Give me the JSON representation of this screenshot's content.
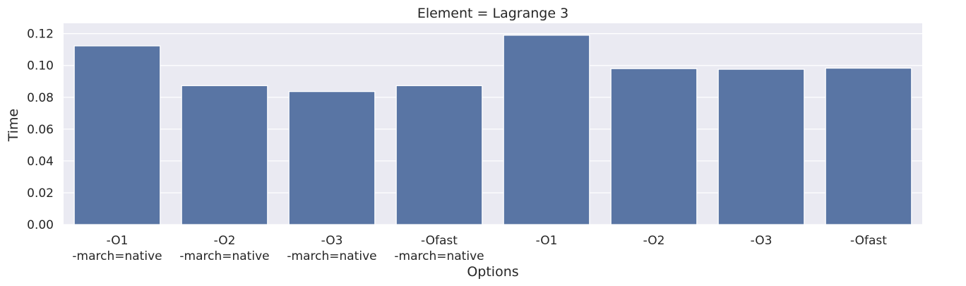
{
  "chart_data": {
    "type": "bar",
    "title": "Element = Lagrange 3",
    "xlabel": "Options",
    "ylabel": "Time",
    "categories": [
      [
        "-O1",
        "-march=native"
      ],
      [
        "-O2",
        "-march=native"
      ],
      [
        "-O3",
        "-march=native"
      ],
      [
        "-Ofast",
        "-march=native"
      ],
      [
        "-O1"
      ],
      [
        "-O2"
      ],
      [
        "-O3"
      ],
      [
        "-Ofast"
      ]
    ],
    "values": [
      0.1123,
      0.0873,
      0.0836,
      0.0873,
      0.119,
      0.098,
      0.0976,
      0.0983
    ],
    "ylim": [
      0,
      0.1265
    ],
    "yticks": [
      0.0,
      0.02,
      0.04,
      0.06,
      0.08,
      0.1,
      0.12
    ],
    "ytick_labels": [
      "0.00",
      "0.02",
      "0.04",
      "0.06",
      "0.08",
      "0.10",
      "0.12"
    ],
    "grid": true,
    "colors": {
      "bar": "#5975a4",
      "plot_background": "#eaeaf2",
      "grid": "#ffffff",
      "text": "#262626"
    }
  }
}
